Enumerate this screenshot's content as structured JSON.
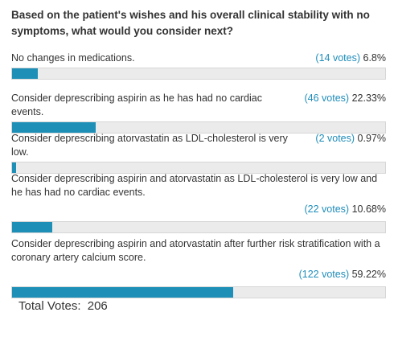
{
  "poll": {
    "question": "Based on the patient's wishes and his overall clinical stability with no symptoms, what would you consider next?",
    "options": [
      {
        "label": "No changes in medications.",
        "votes": "(14 votes)",
        "percent": "6.8%",
        "fraction": 0.068
      },
      {
        "label": "Consider deprescribing aspirin as he has had no cardiac events.",
        "votes": "(46 votes)",
        "percent": "22.33%",
        "fraction": 0.2233
      },
      {
        "label": "Consider deprescribing atorvastatin as LDL-cholesterol is very low.",
        "votes": "(2 votes)",
        "percent": "0.97%",
        "fraction": 0.0097
      },
      {
        "label": "Consider deprescribing aspirin and atorvastatin as LDL-cholesterol is very low and he has had no cardiac events.",
        "votes": "(22 votes)",
        "percent": "10.68%",
        "fraction": 0.1068
      },
      {
        "label": "Consider deprescribing aspirin and atorvastatin after further risk stratification with a coronary artery calcium score.",
        "votes": "(122 votes)",
        "percent": "59.22%",
        "fraction": 0.5922
      }
    ],
    "total_label": "Total Votes:",
    "total_value": "206"
  },
  "colors": {
    "bar_fill": "#1e90b8",
    "bar_track": "#ebebeb",
    "vote_link": "#1f8dbb"
  }
}
